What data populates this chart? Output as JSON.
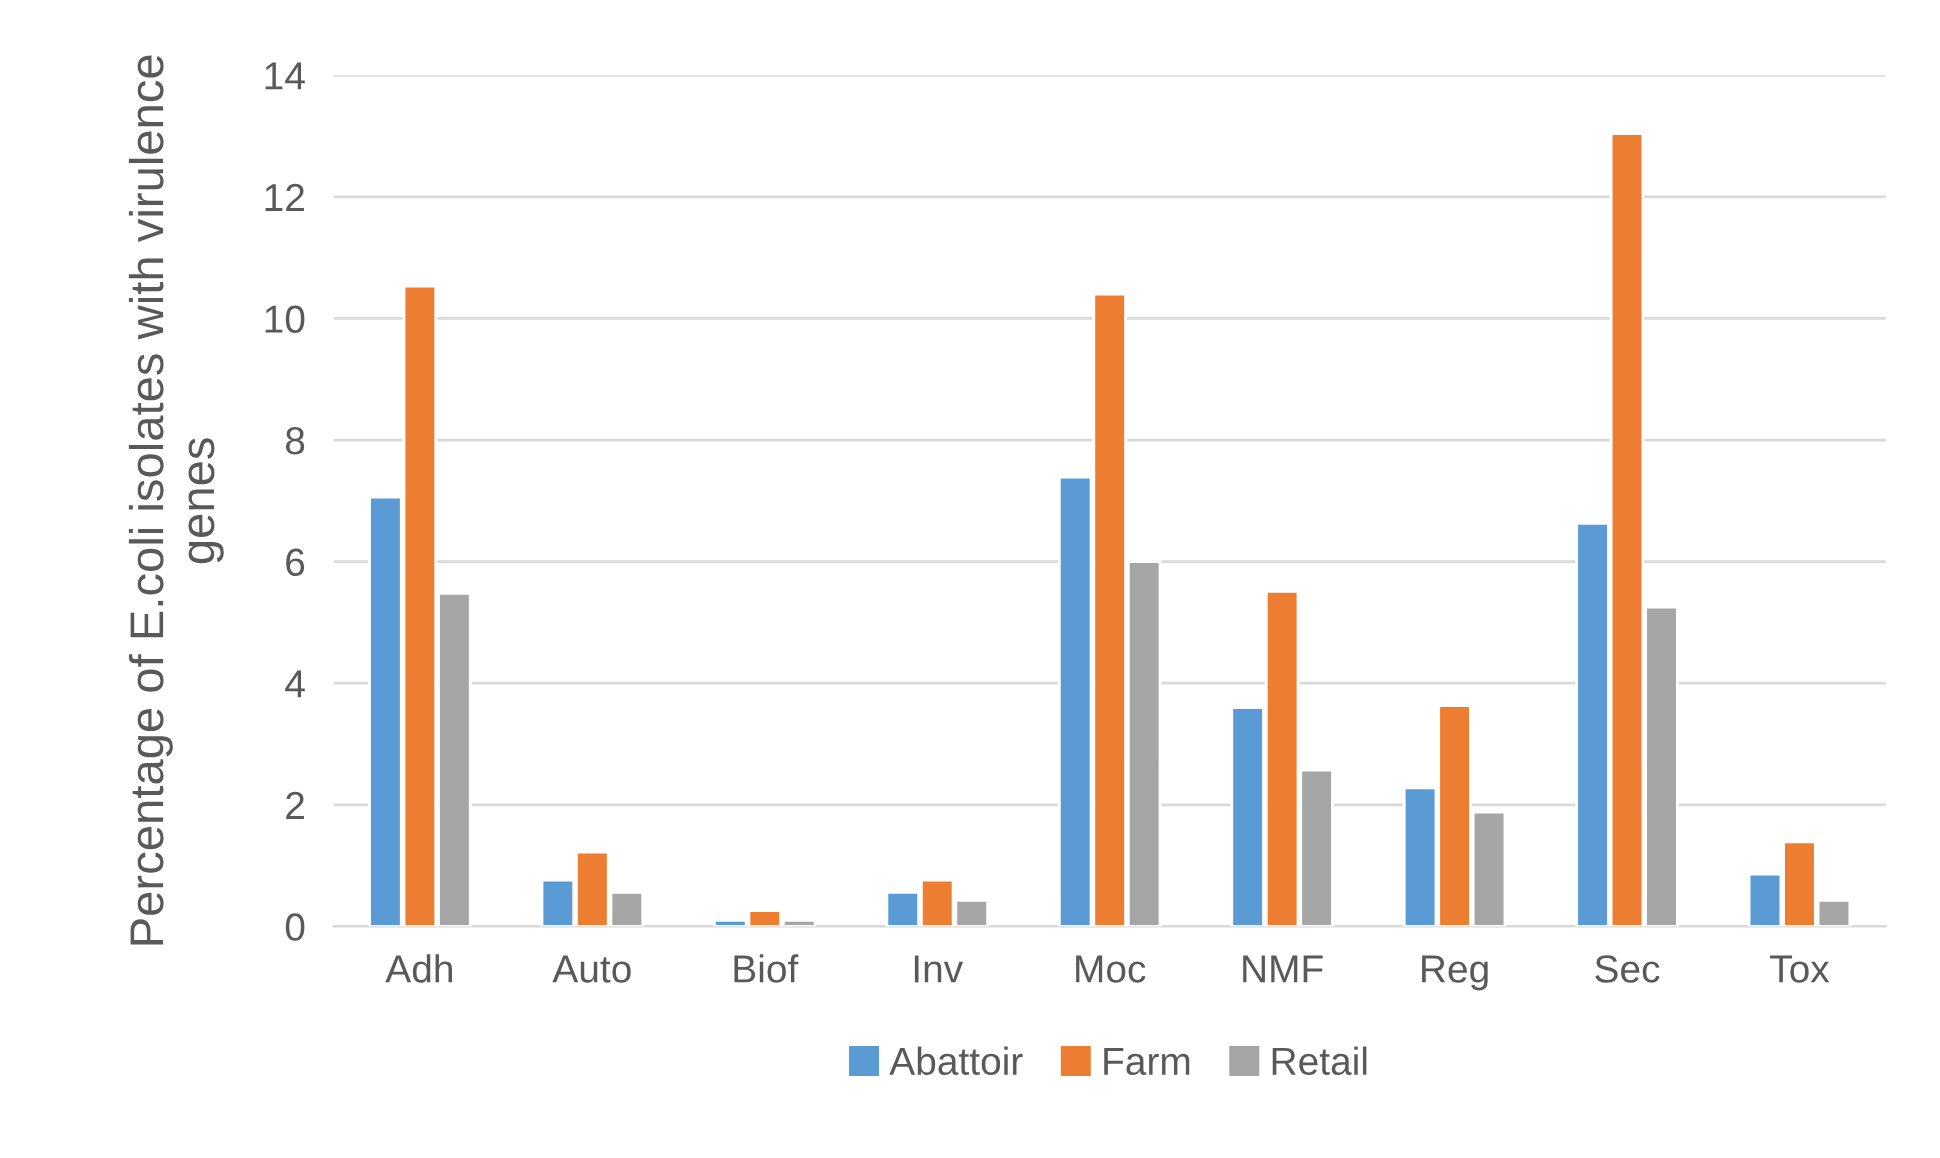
{
  "chart_data": {
    "type": "bar",
    "ylabel": "Percentage of E.coli isolates with virulence genes",
    "categories": [
      "Adh",
      "Auto",
      "Biof",
      "Inv",
      "Moc",
      "NMF",
      "Reg",
      "Sec",
      "Tox"
    ],
    "series": [
      {
        "name": "Abattoir",
        "color": "#5b9bd5",
        "values": [
          7.06,
          0.76,
          0.1,
          0.56,
          7.39,
          3.6,
          2.28,
          6.63,
          0.86
        ]
      },
      {
        "name": "Farm",
        "color": "#ed7d31",
        "values": [
          10.53,
          1.22,
          0.26,
          0.76,
          10.4,
          5.51,
          3.63,
          13.04,
          1.39
        ]
      },
      {
        "name": "Retail",
        "color": "#a5a5a5",
        "values": [
          5.48,
          0.56,
          0.1,
          0.43,
          6.0,
          2.57,
          1.88,
          5.25,
          0.43
        ]
      }
    ],
    "ylim": [
      0,
      14
    ],
    "yticks": [
      0,
      2,
      4,
      6,
      8,
      10,
      12,
      14
    ],
    "grid": "y",
    "legend": "bottom"
  }
}
